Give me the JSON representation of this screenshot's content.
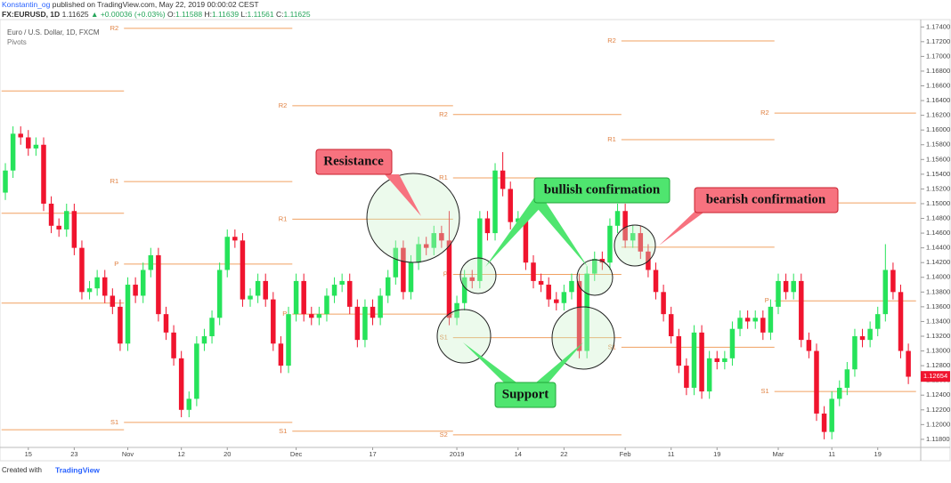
{
  "header": {
    "author": "Konstantin_og",
    "published": "published on TradingView.com, May 22, 2019 00:00:02 CEST",
    "symbol": "FX:EURUSD, 1D",
    "last": "1.11625",
    "change": "▲ +0.00036 (+0.03%)",
    "o_label": "O:",
    "o": "1.11588",
    "h_label": "H:",
    "h": "1.11639",
    "l_label": "L:",
    "l": "1.11561",
    "c_label": "C:",
    "c": "1.11625"
  },
  "chart_data": {
    "type": "candlestick",
    "title": "Euro / U.S. Dollar, 1D, FXCM",
    "subtitle": "Pivots",
    "colors": {
      "up": "#26e35a",
      "down": "#f0142e",
      "pivot": "#f0a060"
    },
    "open": [
      1.1515,
      1.1545,
      1.1595,
      1.159,
      1.1575,
      1.158,
      1.15,
      1.147,
      1.1465,
      1.149,
      1.144,
      1.138,
      1.1385,
      1.14,
      1.1375,
      1.136,
      1.131,
      1.139,
      1.1375,
      1.141,
      1.143,
      1.135,
      1.1325,
      1.129,
      1.122,
      1.1235,
      1.131,
      1.132,
      1.1345,
      1.141,
      1.1455,
      1.145,
      1.137,
      1.1375,
      1.1395,
      1.137,
      1.131,
      1.128,
      1.135,
      1.1395,
      1.135,
      1.1345,
      1.135,
      1.1375,
      1.139,
      1.1395,
      1.136,
      1.1315,
      1.136,
      1.1345,
      1.1375,
      1.14,
      1.144,
      1.138,
      1.142,
      1.1445,
      1.144,
      1.146,
      1.145,
      1.1345,
      1.1365,
      1.14,
      1.1395,
      1.148,
      1.146,
      1.1545,
      1.152,
      1.1475,
      1.148,
      1.142,
      1.1395,
      1.139,
      1.137,
      1.1365,
      1.138,
      1.1395,
      1.13,
      1.1405,
      1.1425,
      1.142,
      1.147,
      1.149,
      1.145,
      1.146,
      1.1435,
      1.141,
      1.138,
      1.135,
      1.132,
      1.128,
      1.125,
      1.1325,
      1.1245,
      1.129,
      1.1285,
      1.129,
      1.133,
      1.1345,
      1.134,
      1.1345,
      1.1325,
      1.136,
      1.1395,
      1.138,
      1.1395,
      1.1315,
      1.13,
      1.1215,
      1.119,
      1.1235,
      1.125,
      1.1275,
      1.132,
      1.1315,
      1.133,
      1.135,
      1.141,
      1.138,
      1.13
    ],
    "high": [
      1.1555,
      1.1605,
      1.1605,
      1.16,
      1.159,
      1.159,
      1.151,
      1.148,
      1.15,
      1.15,
      1.145,
      1.1395,
      1.141,
      1.141,
      1.1385,
      1.137,
      1.14,
      1.14,
      1.142,
      1.144,
      1.144,
      1.136,
      1.1335,
      1.13,
      1.1245,
      1.132,
      1.133,
      1.1355,
      1.142,
      1.1465,
      1.1465,
      1.146,
      1.1385,
      1.1405,
      1.1405,
      1.138,
      1.132,
      1.136,
      1.1405,
      1.1405,
      1.136,
      1.136,
      1.1385,
      1.14,
      1.1405,
      1.1405,
      1.137,
      1.137,
      1.137,
      1.1385,
      1.141,
      1.145,
      1.145,
      1.143,
      1.1455,
      1.1455,
      1.147,
      1.147,
      1.149,
      1.1375,
      1.141,
      1.141,
      1.149,
      1.149,
      1.1555,
      1.157,
      1.153,
      1.149,
      1.149,
      1.143,
      1.1405,
      1.14,
      1.138,
      1.139,
      1.1405,
      1.1405,
      1.1415,
      1.1435,
      1.1435,
      1.148,
      1.15,
      1.15,
      1.147,
      1.147,
      1.1445,
      1.142,
      1.139,
      1.136,
      1.133,
      1.129,
      1.1335,
      1.1335,
      1.13,
      1.13,
      1.13,
      1.134,
      1.1355,
      1.1355,
      1.1355,
      1.1355,
      1.137,
      1.1405,
      1.1405,
      1.1405,
      1.1405,
      1.1325,
      1.131,
      1.1225,
      1.1245,
      1.126,
      1.1285,
      1.133,
      1.133,
      1.134,
      1.136,
      1.1445,
      1.142,
      1.139,
      1.131
    ],
    "low": [
      1.1505,
      1.1535,
      1.158,
      1.1565,
      1.1565,
      1.149,
      1.146,
      1.1455,
      1.1455,
      1.143,
      1.137,
      1.137,
      1.1375,
      1.1365,
      1.135,
      1.13,
      1.13,
      1.1365,
      1.1365,
      1.14,
      1.134,
      1.1315,
      1.128,
      1.121,
      1.121,
      1.1225,
      1.13,
      1.131,
      1.1335,
      1.14,
      1.144,
      1.136,
      1.136,
      1.1365,
      1.136,
      1.13,
      1.127,
      1.127,
      1.134,
      1.134,
      1.1335,
      1.1335,
      1.134,
      1.1365,
      1.138,
      1.135,
      1.1305,
      1.1305,
      1.1335,
      1.1335,
      1.1365,
      1.139,
      1.137,
      1.137,
      1.141,
      1.143,
      1.143,
      1.144,
      1.1335,
      1.1335,
      1.1355,
      1.1385,
      1.1385,
      1.145,
      1.145,
      1.151,
      1.1465,
      1.1465,
      1.141,
      1.1385,
      1.138,
      1.136,
      1.1355,
      1.1355,
      1.137,
      1.129,
      1.129,
      1.1395,
      1.141,
      1.141,
      1.146,
      1.144,
      1.144,
      1.1425,
      1.14,
      1.137,
      1.134,
      1.131,
      1.127,
      1.124,
      1.124,
      1.1235,
      1.1235,
      1.1275,
      1.1275,
      1.128,
      1.132,
      1.133,
      1.133,
      1.1315,
      1.1315,
      1.135,
      1.137,
      1.137,
      1.1305,
      1.129,
      1.1205,
      1.118,
      1.118,
      1.1225,
      1.124,
      1.1265,
      1.1305,
      1.1305,
      1.132,
      1.134,
      1.137,
      1.129,
      1.1255
    ],
    "close": [
      1.1545,
      1.1595,
      1.159,
      1.1575,
      1.158,
      1.15,
      1.147,
      1.1465,
      1.149,
      1.144,
      1.138,
      1.1385,
      1.14,
      1.1375,
      1.136,
      1.131,
      1.139,
      1.1375,
      1.141,
      1.143,
      1.135,
      1.1325,
      1.129,
      1.122,
      1.1235,
      1.131,
      1.132,
      1.1345,
      1.141,
      1.1455,
      1.145,
      1.137,
      1.1375,
      1.1395,
      1.137,
      1.131,
      1.128,
      1.135,
      1.1395,
      1.135,
      1.1345,
      1.135,
      1.1375,
      1.139,
      1.1395,
      1.136,
      1.1315,
      1.136,
      1.1345,
      1.1375,
      1.14,
      1.144,
      1.138,
      1.142,
      1.1445,
      1.144,
      1.146,
      1.145,
      1.1345,
      1.1365,
      1.14,
      1.1395,
      1.148,
      1.146,
      1.1545,
      1.152,
      1.1475,
      1.148,
      1.142,
      1.1395,
      1.139,
      1.137,
      1.1365,
      1.138,
      1.1395,
      1.13,
      1.1405,
      1.1425,
      1.142,
      1.147,
      1.149,
      1.145,
      1.146,
      1.1435,
      1.141,
      1.138,
      1.135,
      1.132,
      1.128,
      1.125,
      1.1325,
      1.1245,
      1.129,
      1.1285,
      1.129,
      1.133,
      1.1345,
      1.134,
      1.1345,
      1.1325,
      1.136,
      1.1395,
      1.138,
      1.1395,
      1.1315,
      1.13,
      1.1215,
      1.119,
      1.1235,
      1.125,
      1.1275,
      1.132,
      1.1315,
      1.133,
      1.135,
      1.141,
      1.138,
      1.13,
      1.1265
    ],
    "xlim": [
      -0.7,
      119.5
    ],
    "xticks": [
      {
        "value": 3,
        "label": "15"
      },
      {
        "value": 9,
        "label": "23"
      },
      {
        "value": 16,
        "label": "Nov"
      },
      {
        "value": 23,
        "label": "12"
      },
      {
        "value": 29,
        "label": "20"
      },
      {
        "value": 38,
        "label": "Dec"
      },
      {
        "value": 48,
        "label": "17"
      },
      {
        "value": 59,
        "label": "2019"
      },
      {
        "value": 67,
        "label": "14"
      },
      {
        "value": 73,
        "label": "22"
      },
      {
        "value": 81,
        "label": "Feb"
      },
      {
        "value": 87,
        "label": "11"
      },
      {
        "value": 93,
        "label": "19"
      },
      {
        "value": 101,
        "label": "Mar"
      },
      {
        "value": 108,
        "label": "11"
      },
      {
        "value": 114,
        "label": "19"
      }
    ],
    "ylim": [
      1.1169,
      1.175
    ],
    "yticks": [
      {
        "value": 1.118,
        "label": "1.11800"
      },
      {
        "value": 1.12,
        "label": "1.12000"
      },
      {
        "value": 1.122,
        "label": "1.12200"
      },
      {
        "value": 1.124,
        "label": "1.12400"
      },
      {
        "value": 1.126,
        "label": "1.12600"
      },
      {
        "value": 1.128,
        "label": "1.12800"
      },
      {
        "value": 1.13,
        "label": "1.13000"
      },
      {
        "value": 1.132,
        "label": "1.13200"
      },
      {
        "value": 1.134,
        "label": "1.13400"
      },
      {
        "value": 1.136,
        "label": "1.13600"
      },
      {
        "value": 1.138,
        "label": "1.13800"
      },
      {
        "value": 1.14,
        "label": "1.14000"
      },
      {
        "value": 1.142,
        "label": "1.14200"
      },
      {
        "value": 1.144,
        "label": "1.14400"
      },
      {
        "value": 1.146,
        "label": "1.14600"
      },
      {
        "value": 1.148,
        "label": "1.14800"
      },
      {
        "value": 1.15,
        "label": "1.15000"
      },
      {
        "value": 1.152,
        "label": "1.15200"
      },
      {
        "value": 1.154,
        "label": "1.15400"
      },
      {
        "value": 1.156,
        "label": "1.15600"
      },
      {
        "value": 1.158,
        "label": "1.15800"
      },
      {
        "value": 1.16,
        "label": "1.16000"
      },
      {
        "value": 1.162,
        "label": "1.16200"
      },
      {
        "value": 1.164,
        "label": "1.16400"
      },
      {
        "value": 1.166,
        "label": "1.16600"
      },
      {
        "value": 1.168,
        "label": "1.16800"
      },
      {
        "value": 1.17,
        "label": "1.17000"
      },
      {
        "value": 1.172,
        "label": "1.17200"
      },
      {
        "value": 1.174,
        "label": "1.17400"
      }
    ],
    "pivots": [
      {
        "label": null,
        "value": 1.1653,
        "from": 0,
        "to": 16
      },
      {
        "label": null,
        "value": 1.1487,
        "from": 0,
        "to": 16
      },
      {
        "label": null,
        "value": 1.1365,
        "from": 0,
        "to": 16
      },
      {
        "label": null,
        "value": 1.1193,
        "from": 0,
        "to": 16
      },
      {
        "label": "R2",
        "value": 1.1738,
        "from": 16,
        "to": 38
      },
      {
        "label": "R1",
        "value": 1.153,
        "from": 16,
        "to": 38
      },
      {
        "label": "P",
        "value": 1.1418,
        "from": 16,
        "to": 38
      },
      {
        "label": "S1",
        "value": 1.1203,
        "from": 16,
        "to": 38
      },
      {
        "label": "R2",
        "value": 1.1633,
        "from": 38,
        "to": 59
      },
      {
        "label": "R1",
        "value": 1.1479,
        "from": 38,
        "to": 59
      },
      {
        "label": "P",
        "value": 1.135,
        "from": 38,
        "to": 59
      },
      {
        "label": "S1",
        "value": 1.1191,
        "from": 38,
        "to": 59
      },
      {
        "label": "R2",
        "value": 1.1621,
        "from": 59,
        "to": 81
      },
      {
        "label": "R1",
        "value": 1.1535,
        "from": 59,
        "to": 81
      },
      {
        "label": "P",
        "value": 1.1404,
        "from": 59,
        "to": 81
      },
      {
        "label": "S1",
        "value": 1.1318,
        "from": 59,
        "to": 81
      },
      {
        "label": "S2",
        "value": 1.1186,
        "from": 59,
        "to": 81
      },
      {
        "label": "R2",
        "value": 1.1721,
        "from": 81,
        "to": 101
      },
      {
        "label": "R1",
        "value": 1.1587,
        "from": 81,
        "to": 101
      },
      {
        "label": null,
        "value": 1.1441,
        "from": 81,
        "to": 101
      },
      {
        "label": "S1",
        "value": 1.1305,
        "from": 81,
        "to": 101
      },
      {
        "label": "R2",
        "value": 1.1623,
        "from": 101,
        "to": 119.5
      },
      {
        "label": null,
        "value": 1.1501,
        "from": 101,
        "to": 119.5
      },
      {
        "label": "P",
        "value": 1.1368,
        "from": 101,
        "to": 119.5
      },
      {
        "label": "S1",
        "value": 1.1245,
        "from": 101,
        "to": 119.5
      }
    ],
    "last_price": {
      "value": 1.12654,
      "label": "1.12654"
    },
    "annotations": [
      "Resistance",
      "bullish confirmation",
      "bearish confirmation",
      "Support"
    ]
  },
  "footer": {
    "created": "Created with",
    "brand": "TradingView"
  }
}
